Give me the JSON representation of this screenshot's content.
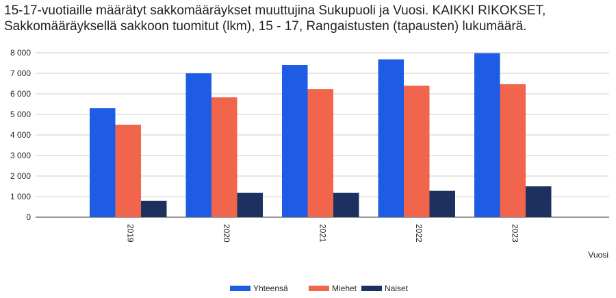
{
  "chart_data": {
    "type": "bar",
    "title": "15-17-vuotiaille määrätyt sakkomääräykset muuttujina Sukupuoli ja Vuosi. KAIKKI RIKOKSET, Sakkomääräyksellä sakkoon tuomitut (lkm), 15 - 17, Rangaistusten (tapausten) lukumäärä.",
    "xlabel": "Vuosi",
    "ylabel": "",
    "categories": [
      "2019",
      "2020",
      "2021",
      "2022",
      "2023"
    ],
    "ylim": [
      0,
      8000
    ],
    "yticks": [
      "0",
      "1 000",
      "2 000",
      "3 000",
      "4 000",
      "5 000",
      "6 000",
      "7 000",
      "8 000"
    ],
    "grid": true,
    "legend_position": "bottom",
    "series": [
      {
        "name": "Yhteensä",
        "color": "#1f5ce6",
        "values": [
          5300,
          7000,
          7400,
          7680,
          7980
        ]
      },
      {
        "name": "Miehet",
        "color": "#f0654b",
        "values": [
          4500,
          5830,
          6230,
          6400,
          6470
        ]
      },
      {
        "name": "Naiset",
        "color": "#1c3160",
        "values": [
          800,
          1180,
          1180,
          1280,
          1500
        ]
      }
    ]
  }
}
